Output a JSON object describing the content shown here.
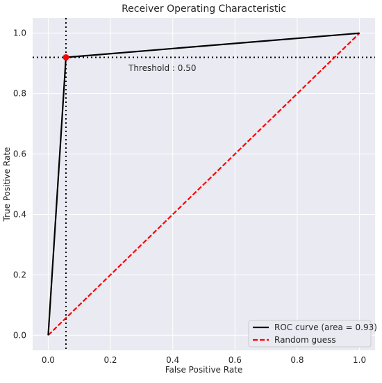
{
  "chart_data": {
    "type": "line",
    "title": "Receiver Operating Characteristic",
    "xlabel": "False Positive Rate",
    "ylabel": "True Positive Rate",
    "xlim": [
      -0.05,
      1.05
    ],
    "ylim": [
      -0.05,
      1.05
    ],
    "xticks": [
      0.0,
      0.2,
      0.4,
      0.6,
      0.8,
      1.0
    ],
    "yticks": [
      0.0,
      0.2,
      0.4,
      0.6,
      0.8,
      1.0
    ],
    "xtick_labels": [
      "0.0",
      "0.2",
      "0.4",
      "0.6",
      "0.8",
      "1.0"
    ],
    "ytick_labels": [
      "0.0",
      "0.2",
      "0.4",
      "0.6",
      "0.8",
      "1.0"
    ],
    "grid": true,
    "background": "#eaeaf2",
    "series": [
      {
        "name": "ROC curve (area = 0.93)",
        "color": "#000000",
        "style": "solid",
        "x": [
          0.0,
          0.057,
          1.0
        ],
        "y": [
          0.0,
          0.92,
          1.0
        ]
      },
      {
        "name": "Random guess",
        "color": "#ff0000",
        "style": "dashed",
        "x": [
          0.0,
          1.0
        ],
        "y": [
          0.0,
          1.0
        ]
      }
    ],
    "threshold_point": {
      "x": 0.057,
      "y": 0.92,
      "color": "#ff0000"
    },
    "reference_lines": {
      "vertical_x": 0.057,
      "horizontal_y": 0.92,
      "style": "dotted",
      "color": "#000000"
    },
    "annotation": {
      "text": "Threshold : 0.50",
      "x": 0.26,
      "y": 0.875
    },
    "legend_position": "lower right"
  }
}
